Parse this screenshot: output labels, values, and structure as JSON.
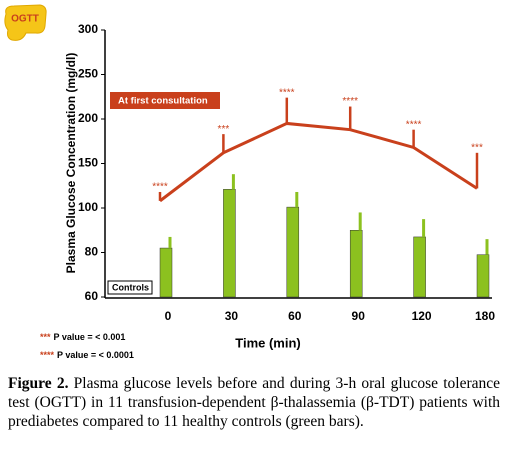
{
  "chart_data": {
    "type": "bar-line",
    "badge": "OGTT",
    "y_label": "Plasma Glucose Concentration (mg/dl)",
    "x_label": "Time (min)",
    "categories": [
      "0",
      "30",
      "60",
      "90",
      "120",
      "180"
    ],
    "yticks": [
      60,
      80,
      100,
      150,
      200,
      250,
      300
    ],
    "ylim": [
      60,
      300
    ],
    "series": [
      {
        "name": "Controls",
        "kind": "bar",
        "color": "#8cc11f",
        "values": [
          82,
          121,
          101,
          90,
          87,
          79
        ],
        "errors": [
          5,
          17,
          17,
          8,
          8,
          7
        ]
      },
      {
        "name": "At first consultation",
        "kind": "line",
        "color": "#c9401c",
        "values": [
          108,
          162,
          195,
          188,
          168,
          122
        ],
        "errors": [
          10,
          21,
          29,
          26,
          20,
          40
        ],
        "significance": [
          "****",
          "***",
          "****",
          "****",
          "****",
          "***"
        ]
      }
    ],
    "footnotes": [
      {
        "stars": "***",
        "text": "P value = < 0.001"
      },
      {
        "stars": "****",
        "text": "P value = < 0.0001"
      }
    ]
  },
  "caption": {
    "label": "Figure 2.",
    "text": "Plasma glucose levels before and during 3-h oral glucose tolerance test (OGTT) in 11 transfusion-dependent β-thalassemia (β-TDT) patients with prediabetes compared to 11 healthy controls (green bars)."
  }
}
